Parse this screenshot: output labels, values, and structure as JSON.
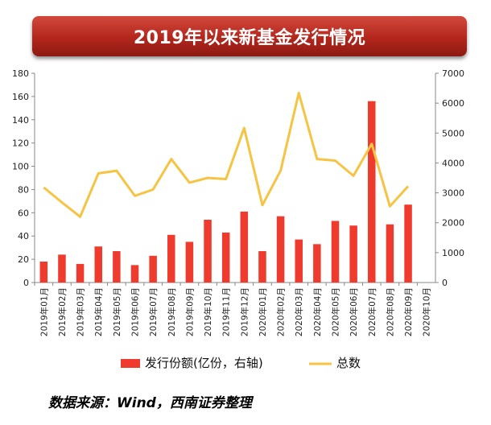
{
  "chart_data": {
    "type": "bar+line",
    "title": "2019年以来新基金发行情况",
    "categories": [
      "2019年01月",
      "2019年02月",
      "2019年03月",
      "2019年04月",
      "2019年05月",
      "2019年06月",
      "2019年07月",
      "2019年08月",
      "2019年09月",
      "2019年10月",
      "2019年11月",
      "2019年12月",
      "2020年01月",
      "2020年02月",
      "2020年03月",
      "2020年04月",
      "2020年05月",
      "2020年06月",
      "2020年07月",
      "2020年08月",
      "2020年09月",
      "2020年10月"
    ],
    "series": [
      {
        "name": "发行份额(亿份，右轴)",
        "type": "bar",
        "axis": "left",
        "color": "#ef3a2e",
        "values": [
          18,
          24,
          16,
          31,
          27,
          15,
          23,
          41,
          35,
          54,
          43,
          61,
          27,
          57,
          37,
          33,
          53,
          49,
          156,
          50,
          67,
          null
        ]
      },
      {
        "name": "总数",
        "type": "line",
        "axis": "right",
        "color": "#f6c343",
        "values": [
          3180,
          2680,
          2200,
          3650,
          3740,
          2900,
          3110,
          4130,
          3340,
          3500,
          3460,
          5170,
          2590,
          3740,
          6340,
          4130,
          4080,
          3570,
          4640,
          2550,
          3220,
          null
        ]
      }
    ],
    "left_axis": {
      "min": 0,
      "max": 180,
      "step": 20,
      "ticks": [
        "0",
        "20",
        "40",
        "60",
        "80",
        "100",
        "120",
        "140",
        "160",
        "180"
      ]
    },
    "right_axis": {
      "min": 0,
      "max": 7000,
      "step": 1000,
      "ticks": [
        "0",
        "1000",
        "2000",
        "3000",
        "4000",
        "5000",
        "6000",
        "7000"
      ]
    },
    "grid": false,
    "legend": "bottom"
  },
  "source_note": "数据来源：Wind，西南证券整理"
}
